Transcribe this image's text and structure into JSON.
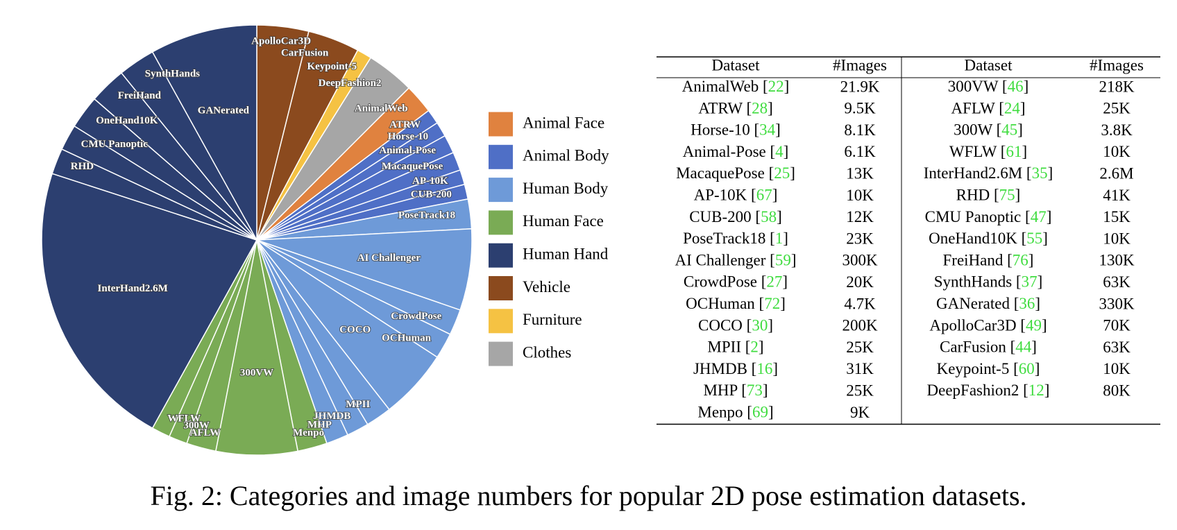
{
  "chart_data": {
    "type": "pie",
    "categories": [
      "ApolloCar3D",
      "CarFusion",
      "Keypoint-5",
      "DeepFashion2",
      "AnimalWeb",
      "ATRW",
      "Horse-10",
      "Animal-Pose",
      "MacaquePose",
      "AP-10K",
      "CUB-200",
      "PoseTrack18",
      "AI Challenger",
      "CrowdPose",
      "OCHuman",
      "COCO",
      "MPII",
      "JHMDB",
      "MHP",
      "Menpo",
      "300VW",
      "AFLW",
      "300W",
      "WFLW",
      "InterHand2.6M",
      "RHD",
      "CMU Panoptic",
      "OneHand10K",
      "FreiHand",
      "SynthHands",
      "GANerated"
    ],
    "values": [
      14,
      14,
      4,
      13,
      8,
      4,
      4,
      5,
      5,
      4,
      4,
      8,
      22,
      7,
      7,
      19,
      7,
      6,
      6,
      8,
      22,
      8,
      5,
      5,
      79,
      7,
      7,
      9,
      10,
      10,
      29
    ],
    "colors": [
      "#8b4a1e",
      "#8b4a1e",
      "#f5c243",
      "#a6a6a6",
      "#e0823f",
      "#4f6fc6",
      "#4f6fc6",
      "#4f6fc6",
      "#4f6fc6",
      "#4f6fc6",
      "#4f6fc6",
      "#6e9ad8",
      "#6e9ad8",
      "#6e9ad8",
      "#6e9ad8",
      "#6e9ad8",
      "#6e9ad8",
      "#6e9ad8",
      "#6e9ad8",
      "#7aab55",
      "#7aab55",
      "#7aab55",
      "#7aab55",
      "#7aab55",
      "#2c3f70",
      "#2c3f70",
      "#2c3f70",
      "#2c3f70",
      "#2c3f70",
      "#2c3f70",
      "#2c3f70"
    ],
    "legend": {
      "names": [
        "Animal Face",
        "Animal Body",
        "Human Body",
        "Human Face",
        "Human Hand",
        "Vehicle",
        "Furniture",
        "Clothes"
      ],
      "colors": [
        "#e0823f",
        "#4f6fc6",
        "#6e9ad8",
        "#7aab55",
        "#2c3f70",
        "#8b4a1e",
        "#f5c243",
        "#a6a6a6"
      ]
    }
  },
  "table": {
    "header": [
      "Dataset",
      "#Images",
      "Dataset",
      "#Images"
    ],
    "left_rows": [
      {
        "dataset": [
          "AnimalWeb [",
          "22",
          "]"
        ],
        "images": "21.9K"
      },
      {
        "dataset": [
          "ATRW [",
          "28",
          "]"
        ],
        "images": "9.5K"
      },
      {
        "dataset": [
          "Horse-10 [",
          "34",
          "]"
        ],
        "images": "8.1K"
      },
      {
        "dataset": [
          "Animal-Pose [",
          "4",
          "]"
        ],
        "images": "6.1K"
      },
      {
        "dataset": [
          "MacaquePose [",
          "25",
          "]"
        ],
        "images": "13K"
      },
      {
        "dataset": [
          "AP-10K [",
          "67",
          "]"
        ],
        "images": "10K"
      },
      {
        "dataset": [
          "CUB-200 [",
          "58",
          "]"
        ],
        "images": "12K"
      },
      {
        "dataset": [
          "PoseTrack18 [",
          "1",
          "]"
        ],
        "images": "23K"
      },
      {
        "dataset": [
          "AI Challenger [",
          "59",
          "]"
        ],
        "images": "300K"
      },
      {
        "dataset": [
          "CrowdPose [",
          "27",
          "]"
        ],
        "images": "20K"
      },
      {
        "dataset": [
          "OCHuman [",
          "72",
          "]"
        ],
        "images": "4.7K"
      },
      {
        "dataset": [
          "COCO [",
          "30",
          "]"
        ],
        "images": "200K"
      },
      {
        "dataset": [
          "MPII [",
          "2",
          "]"
        ],
        "images": "25K"
      },
      {
        "dataset": [
          "JHMDB [",
          "16",
          "]"
        ],
        "images": "31K"
      },
      {
        "dataset": [
          "MHP [",
          "73",
          "]"
        ],
        "images": "25K"
      },
      {
        "dataset": [
          "Menpo [",
          "69",
          "]"
        ],
        "images": "9K"
      }
    ],
    "right_rows": [
      {
        "dataset": [
          "300VW [",
          "46",
          "]"
        ],
        "images": "218K"
      },
      {
        "dataset": [
          "AFLW [",
          "24",
          "]"
        ],
        "images": "25K"
      },
      {
        "dataset": [
          "300W [",
          "45",
          "]"
        ],
        "images": "3.8K"
      },
      {
        "dataset": [
          "WFLW [",
          "61",
          "]"
        ],
        "images": "10K"
      },
      {
        "dataset": [
          "InterHand2.6M [",
          "35",
          "]"
        ],
        "images": "2.6M"
      },
      {
        "dataset": [
          "RHD [",
          "75",
          "]"
        ],
        "images": "41K"
      },
      {
        "dataset": [
          "CMU Panoptic [",
          "47",
          "]"
        ],
        "images": "15K"
      },
      {
        "dataset": [
          "OneHand10K [",
          "55",
          "]"
        ],
        "images": "10K"
      },
      {
        "dataset": [
          "FreiHand [",
          "76",
          "]"
        ],
        "images": "130K"
      },
      {
        "dataset": [
          "SynthHands [",
          "37",
          "]"
        ],
        "images": "63K"
      },
      {
        "dataset": [
          "GANerated [",
          "36",
          "]"
        ],
        "images": "330K"
      },
      {
        "dataset": [
          "ApolloCar3D [",
          "49",
          "]"
        ],
        "images": "70K"
      },
      {
        "dataset": [
          "CarFusion [",
          "44",
          "]"
        ],
        "images": "63K"
      },
      {
        "dataset": [
          "Keypoint-5 [",
          "60",
          "]"
        ],
        "images": "10K"
      },
      {
        "dataset": [
          "DeepFashion2 [",
          "12",
          "]"
        ],
        "images": "80K"
      }
    ]
  },
  "caption": "Fig. 2: Categories and image numbers for popular 2D pose estimation datasets."
}
